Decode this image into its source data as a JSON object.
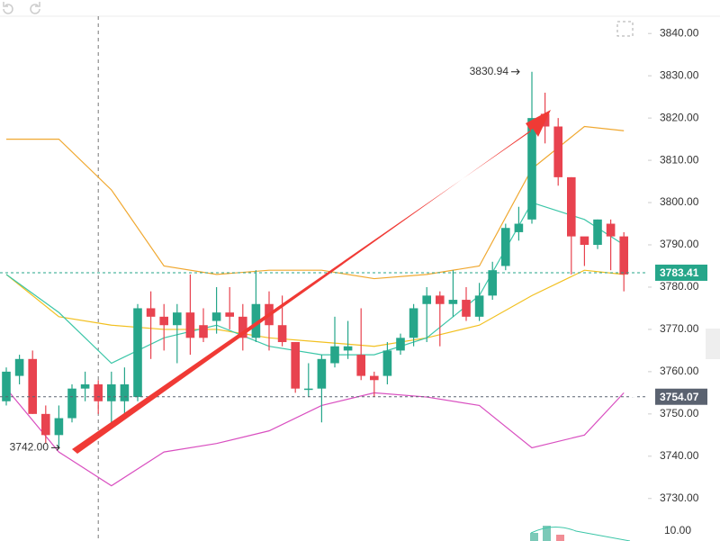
{
  "chart_data": {
    "type": "candlestick",
    "up_color": "#26a68a",
    "down_color": "#e8434f",
    "open": [
      3753,
      3759,
      3763,
      3750,
      3745,
      3749,
      3756,
      3757,
      3753,
      3753,
      3754,
      3775,
      3773,
      3771,
      3774,
      3771,
      3772,
      3774,
      3773,
      3768,
      3776,
      3771,
      3767,
      3756,
      3756,
      3762,
      3765,
      3764,
      3759,
      3759,
      3765,
      3768,
      3776,
      3778,
      3776,
      3777,
      3773,
      3778,
      3785,
      3793,
      3796,
      3821,
      3818,
      3806,
      3792,
      3790,
      3795,
      3792
    ],
    "high": [
      3761,
      3764,
      3765,
      3752,
      3752,
      3757,
      3760,
      3758,
      3760,
      3761,
      3776,
      3779,
      3776,
      3776,
      3783,
      3775,
      3780,
      3780,
      3776,
      3784,
      3779,
      3778,
      3767,
      3762,
      3764,
      3773,
      3772,
      3775,
      3760,
      3767,
      3769,
      3776,
      3780,
      3779,
      3784,
      3780,
      3781,
      3786,
      3795,
      3799,
      3830.94,
      3826,
      3820,
      3806,
      3791,
      3796,
      3796,
      3793
    ],
    "low": [
      3752,
      3757,
      3750,
      3743,
      3742,
      3748,
      3753,
      3750,
      3748,
      3750,
      3753,
      3763,
      3765,
      3762,
      3764,
      3767,
      3769,
      3770,
      3765,
      3767,
      3765,
      3766,
      3755,
      3754,
      3748,
      3761,
      3763,
      3758,
      3754,
      3757,
      3764,
      3766,
      3767,
      3766,
      3773,
      3772,
      3772,
      3777,
      3784,
      3791,
      3795,
      3814,
      3804,
      3783,
      3785,
      3789,
      3784,
      3779
    ],
    "close": [
      3760,
      3763,
      3750,
      3745,
      3749,
      3756,
      3757,
      3753,
      3757,
      3757,
      3775,
      3773,
      3771,
      3774,
      3768,
      3768,
      3774,
      3773,
      3768,
      3776,
      3771,
      3767,
      3756,
      3756,
      3763,
      3766,
      3766,
      3759,
      3758,
      3765,
      3768,
      3775,
      3778,
      3776,
      3777,
      3773,
      3778,
      3784,
      3794,
      3795,
      3820,
      3818,
      3806,
      3792,
      3790,
      3796,
      3792,
      3783
    ],
    "indicator_x": [
      0,
      4,
      8,
      12,
      16,
      20,
      24,
      28,
      32,
      36,
      40,
      44,
      47
    ],
    "indicators": [
      {
        "color": "#f0a830",
        "values": [
          3815,
          3815,
          3803,
          3785,
          3783,
          3784,
          3784,
          3782,
          3783,
          3785,
          3808,
          3818,
          3817
        ]
      },
      {
        "color": "#f2c020",
        "values": [
          3783,
          3773,
          3771,
          3770,
          3770,
          3768,
          3767,
          3766,
          3768,
          3771,
          3778,
          3784,
          3783
        ]
      },
      {
        "color": "#3cc6a8",
        "values": [
          3783,
          3774,
          3762,
          3768,
          3771,
          3766,
          3764,
          3764,
          3768,
          3778,
          3800,
          3796,
          3790
        ]
      },
      {
        "color": "#d94fc0",
        "values": [
          3756,
          3741,
          3733,
          3741,
          3743,
          3746,
          3752,
          3755,
          3754,
          3752,
          3742,
          3745,
          3755
        ]
      }
    ],
    "ylim": [
      3724.2,
      3844.05
    ],
    "yticks": [
      {
        "value": 3730,
        "label": "3730.00"
      },
      {
        "value": 3740,
        "label": "3740.00"
      },
      {
        "value": 3750,
        "label": "3750.00"
      },
      {
        "value": 3760,
        "label": "3760.00"
      },
      {
        "value": 3770,
        "label": "3770.00"
      },
      {
        "value": 3780,
        "label": "3780.00"
      },
      {
        "value": 3790,
        "label": "3790.00"
      },
      {
        "value": 3800,
        "label": "3800.00"
      },
      {
        "value": 3810,
        "label": "3810.00"
      },
      {
        "value": 3820,
        "label": "3820.00"
      },
      {
        "value": 3830,
        "label": "3830.00"
      },
      {
        "value": 3840,
        "label": "3840.00"
      }
    ],
    "price_lines": [
      {
        "value": 3783.41,
        "color": "#26a68a"
      },
      {
        "value": 3754.07,
        "color": "#5a6270"
      }
    ],
    "annotations": [
      {
        "value": 3830.94,
        "index": 40
      },
      {
        "value": 3742,
        "label": "3742.00",
        "index": 5
      }
    ],
    "volume_yticks": [
      {
        "value": 10,
        "label": "10.00"
      }
    ],
    "crosshair_index": 7
  }
}
